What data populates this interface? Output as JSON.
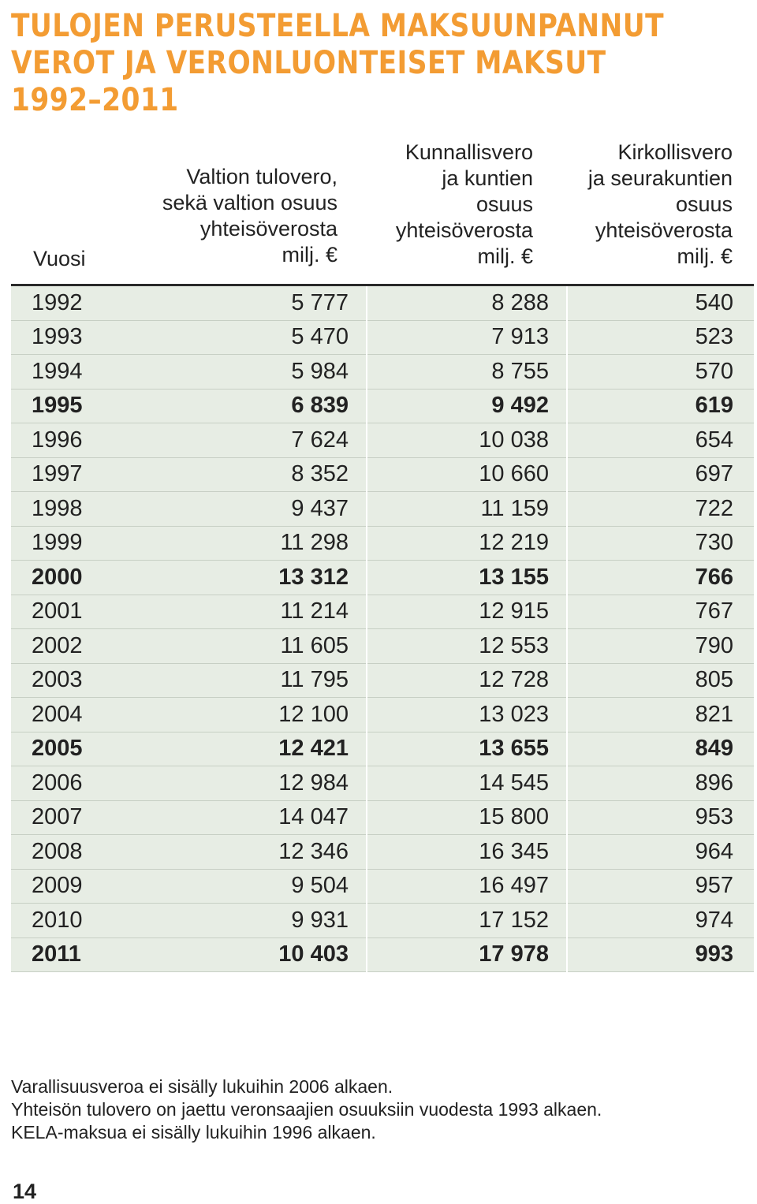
{
  "title": {
    "line1": "TULOJEN PERUSTEELLA MAKSUUNPANNUT",
    "line2": "VEROT JA VERONLUONTEISET MAKSUT",
    "line3": "1992–2011"
  },
  "headers": {
    "year": "Vuosi",
    "state": {
      "l1": "Valtion tulovero,",
      "l2": "sekä valtion osuus",
      "l3": "yhteisöverosta",
      "unit": "milj. €"
    },
    "municipal": {
      "l1": "Kunnallisvero",
      "l2": "ja kuntien",
      "l3": "osuus",
      "l4": "yhteisöverosta",
      "unit": "milj. €"
    },
    "church": {
      "l1": "Kirkollisvero",
      "l2": "ja seurakuntien",
      "l3": "osuus",
      "l4": "yhteisöverosta",
      "unit": "milj. €"
    }
  },
  "rows": [
    {
      "year": "1992",
      "state": "5 777",
      "municipal": "8 288",
      "church": "540",
      "bold": false
    },
    {
      "year": "1993",
      "state": "5 470",
      "municipal": "7 913",
      "church": "523",
      "bold": false
    },
    {
      "year": "1994",
      "state": "5 984",
      "municipal": "8 755",
      "church": "570",
      "bold": false
    },
    {
      "year": "1995",
      "state": "6 839",
      "municipal": "9 492",
      "church": "619",
      "bold": true
    },
    {
      "year": "1996",
      "state": "7 624",
      "municipal": "10 038",
      "church": "654",
      "bold": false
    },
    {
      "year": "1997",
      "state": "8 352",
      "municipal": "10 660",
      "church": "697",
      "bold": false
    },
    {
      "year": "1998",
      "state": "9 437",
      "municipal": "11 159",
      "church": "722",
      "bold": false
    },
    {
      "year": "1999",
      "state": "11 298",
      "municipal": "12 219",
      "church": "730",
      "bold": false
    },
    {
      "year": "2000",
      "state": "13 312",
      "municipal": "13 155",
      "church": "766",
      "bold": true
    },
    {
      "year": "2001",
      "state": "11 214",
      "municipal": "12 915",
      "church": "767",
      "bold": false
    },
    {
      "year": "2002",
      "state": "11 605",
      "municipal": "12 553",
      "church": "790",
      "bold": false
    },
    {
      "year": "2003",
      "state": "11 795",
      "municipal": "12 728",
      "church": "805",
      "bold": false
    },
    {
      "year": "2004",
      "state": "12 100",
      "municipal": "13 023",
      "church": "821",
      "bold": false
    },
    {
      "year": "2005",
      "state": "12 421",
      "municipal": "13 655",
      "church": "849",
      "bold": true
    },
    {
      "year": "2006",
      "state": "12 984",
      "municipal": "14 545",
      "church": "896",
      "bold": false
    },
    {
      "year": "2007",
      "state": "14 047",
      "municipal": "15 800",
      "church": "953",
      "bold": false
    },
    {
      "year": "2008",
      "state": "12 346",
      "municipal": "16 345",
      "church": "964",
      "bold": false
    },
    {
      "year": "2009",
      "state": "9 504",
      "municipal": "16 497",
      "church": "957",
      "bold": false
    },
    {
      "year": "2010",
      "state": "9 931",
      "municipal": "17 152",
      "church": "974",
      "bold": false
    },
    {
      "year": "2011",
      "state": "10 403",
      "municipal": "17 978",
      "church": "993",
      "bold": true
    }
  ],
  "notes": [
    "Varallisuusveroa ei sisälly lukuihin 2006 alkaen.",
    "Yhteisön tulovero on jaettu veronsaajien osuuksiin vuodesta 1993 alkaen.",
    "KELA-maksua ei sisälly lukuihin 1996 alkaen."
  ],
  "page_number": "14",
  "colors": {
    "title": "#f39c33",
    "row_bg": "#e7ede4",
    "row_border": "#c7cfc4"
  }
}
